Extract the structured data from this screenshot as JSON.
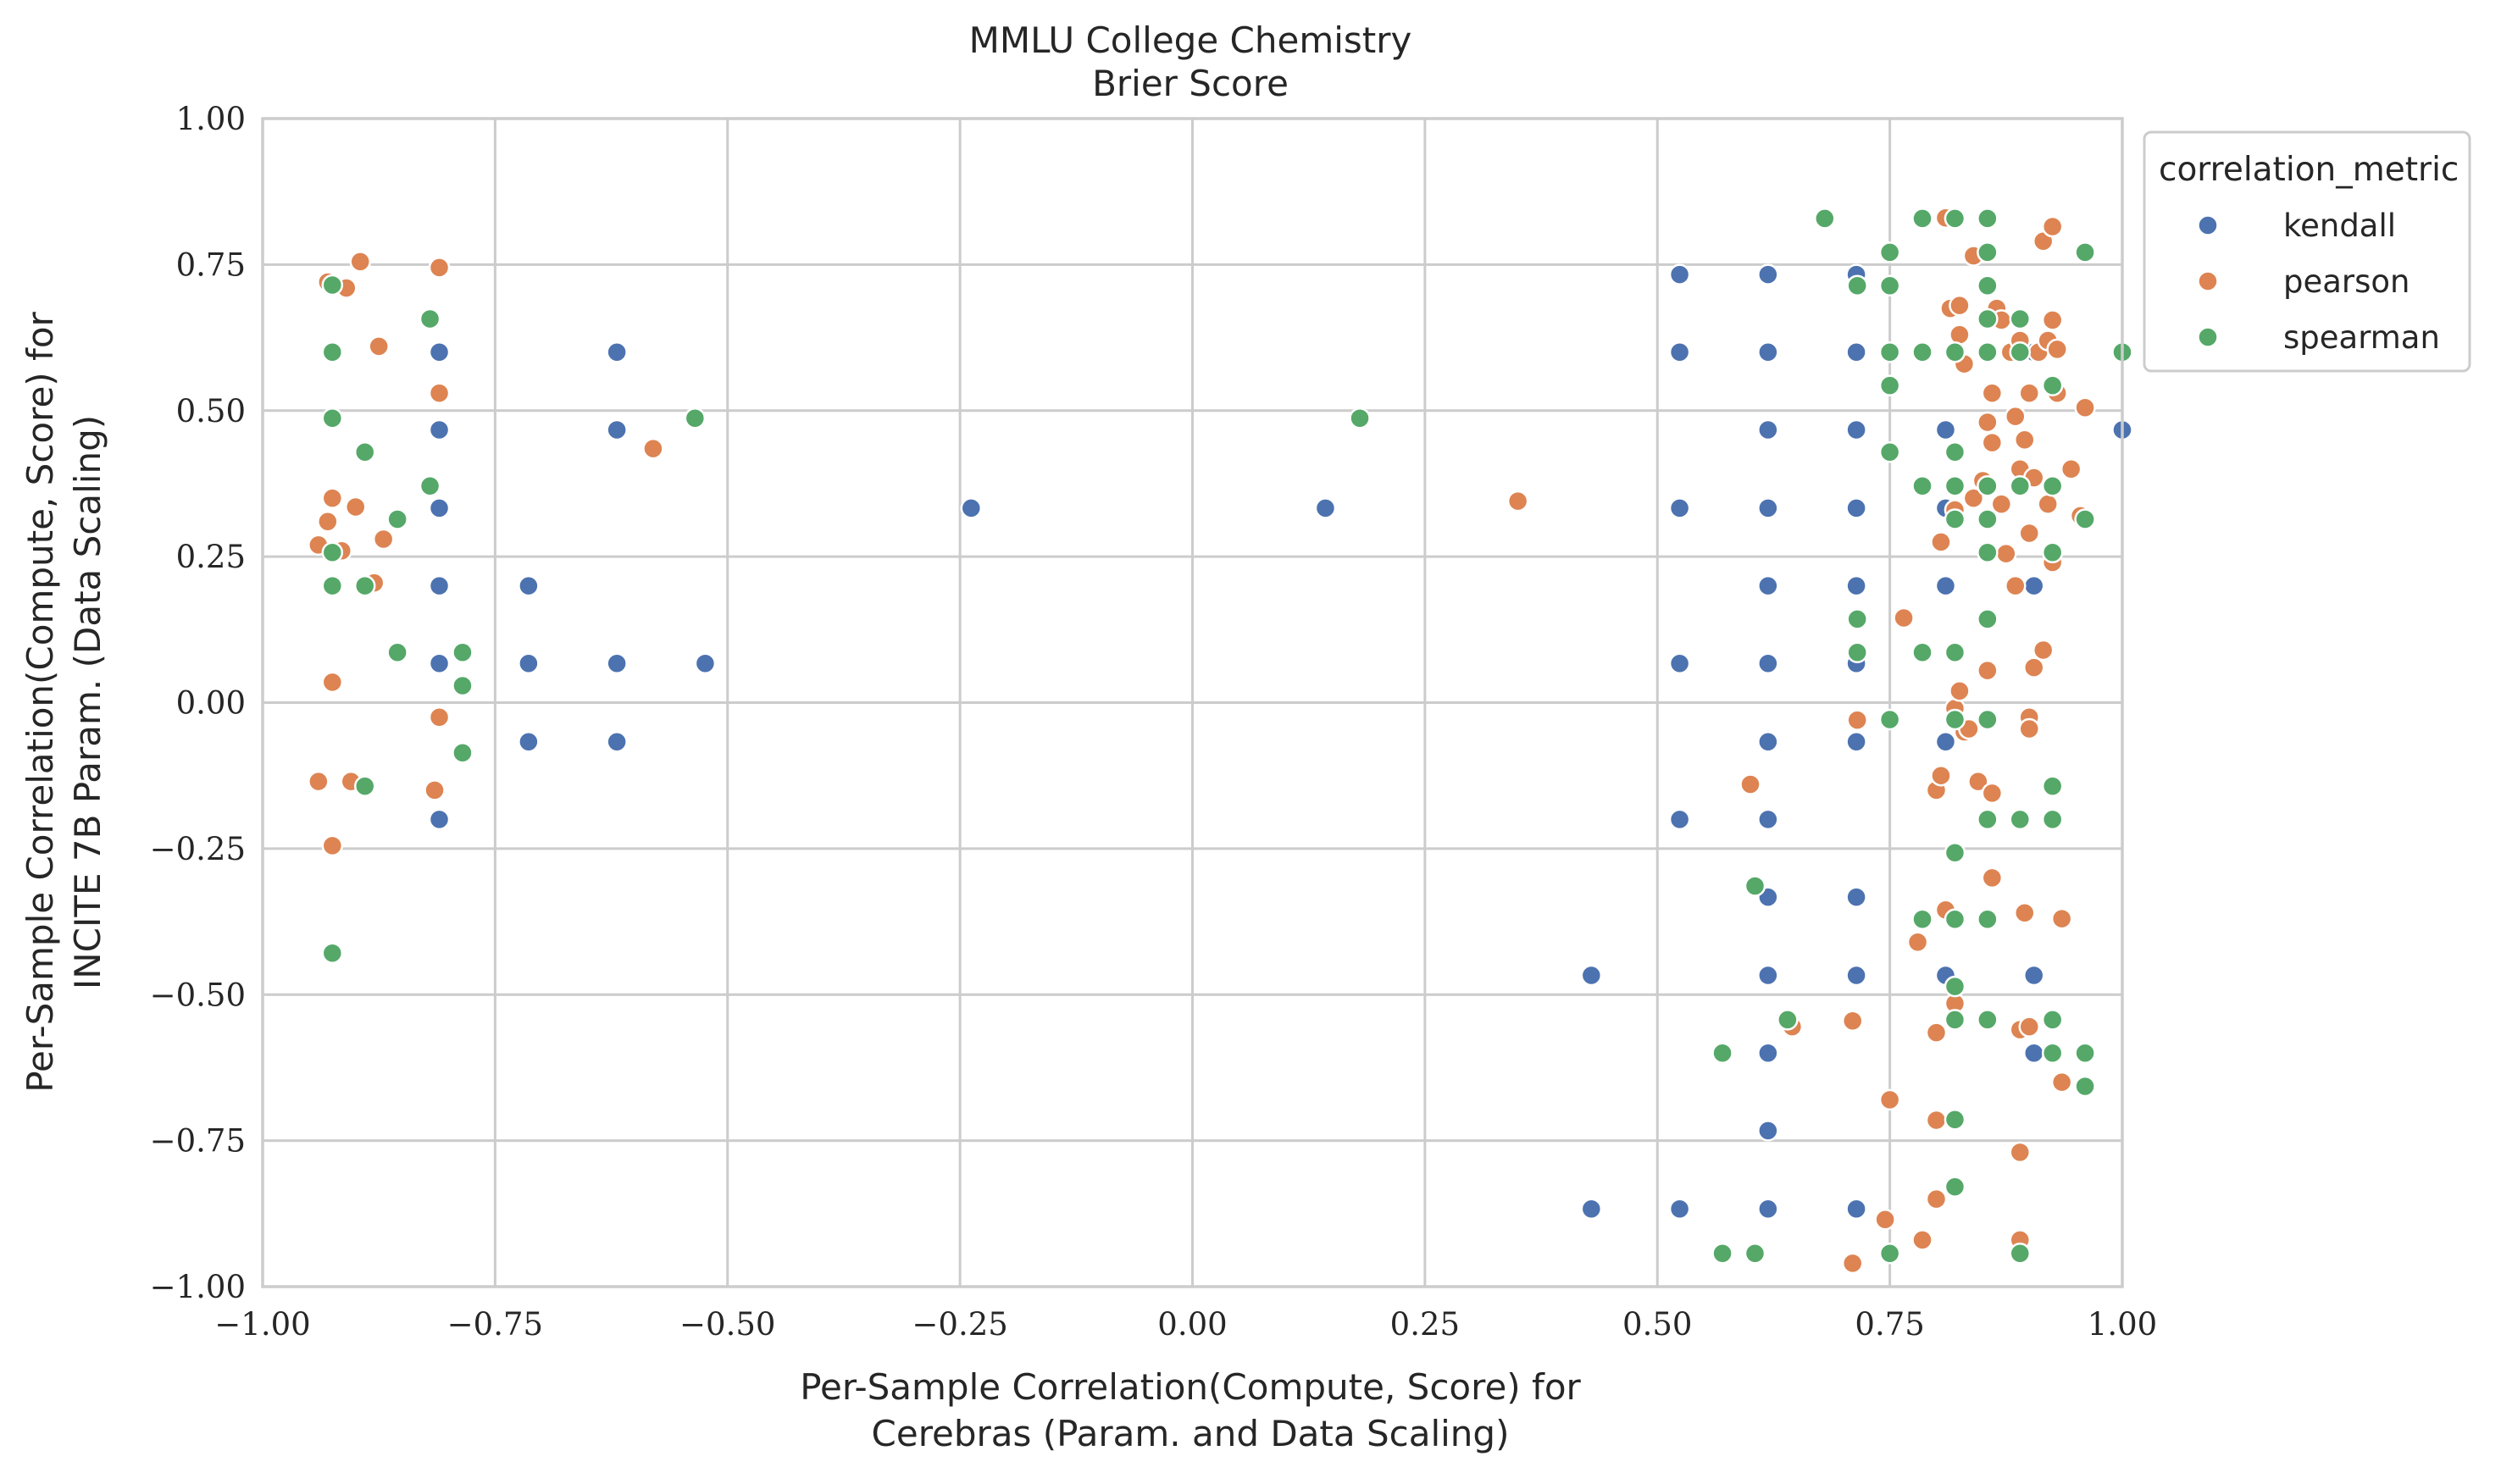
{
  "chart_data": {
    "type": "scatter",
    "title": "MMLU College Chemistry",
    "subtitle": "Brier Score",
    "xlabel_line1": "Per-Sample Correlation(Compute, Score) for",
    "xlabel_line2": "Cerebras (Param. and Data Scaling)",
    "ylabel_line1": "Per-Sample Correlation(Compute, Score) for",
    "ylabel_line2": "INCITE 7B Param. (Data Scaling)",
    "xlim": [
      -1.0,
      1.0
    ],
    "ylim": [
      -1.0,
      1.0
    ],
    "xticks": [
      -1.0,
      -0.75,
      -0.5,
      -0.25,
      0.0,
      0.25,
      0.5,
      0.75,
      1.0
    ],
    "yticks": [
      -1.0,
      -0.75,
      -0.5,
      -0.25,
      0.0,
      0.25,
      0.5,
      0.75,
      1.0
    ],
    "xtick_labels": [
      "−1.00",
      "−0.75",
      "−0.50",
      "−0.25",
      "0.00",
      "0.25",
      "0.50",
      "0.75",
      "1.00"
    ],
    "ytick_labels": [
      "−1.00",
      "−0.75",
      "−0.50",
      "−0.25",
      "0.00",
      "0.25",
      "0.50",
      "0.75",
      "1.00"
    ],
    "grid": true,
    "legend": {
      "title": "correlation_metric",
      "placement": "outside-top-right"
    },
    "series": [
      {
        "name": "kendall",
        "color": "#4c72b0",
        "points": [
          [
            -0.81,
            0.6
          ],
          [
            -0.81,
            0.467
          ],
          [
            -0.81,
            0.333
          ],
          [
            -0.81,
            0.2
          ],
          [
            -0.81,
            0.067
          ],
          [
            -0.81,
            -0.2
          ],
          [
            -0.714,
            0.2
          ],
          [
            -0.714,
            0.067
          ],
          [
            -0.714,
            -0.067
          ],
          [
            -0.619,
            0.6
          ],
          [
            -0.619,
            0.467
          ],
          [
            -0.619,
            0.067
          ],
          [
            -0.619,
            -0.067
          ],
          [
            -0.524,
            0.067
          ],
          [
            -0.238,
            0.333
          ],
          [
            0.143,
            0.333
          ],
          [
            0.429,
            -0.467
          ],
          [
            0.429,
            -0.867
          ],
          [
            0.524,
            0.733
          ],
          [
            0.524,
            0.6
          ],
          [
            0.524,
            0.333
          ],
          [
            0.524,
            0.067
          ],
          [
            0.524,
            -0.2
          ],
          [
            0.524,
            -0.867
          ],
          [
            0.619,
            0.733
          ],
          [
            0.619,
            0.6
          ],
          [
            0.619,
            0.467
          ],
          [
            0.619,
            0.333
          ],
          [
            0.619,
            0.2
          ],
          [
            0.619,
            0.067
          ],
          [
            0.619,
            -0.067
          ],
          [
            0.619,
            -0.2
          ],
          [
            0.619,
            -0.333
          ],
          [
            0.619,
            -0.467
          ],
          [
            0.619,
            -0.6
          ],
          [
            0.619,
            -0.733
          ],
          [
            0.619,
            -0.867
          ],
          [
            0.714,
            0.733
          ],
          [
            0.714,
            0.6
          ],
          [
            0.714,
            0.467
          ],
          [
            0.714,
            0.333
          ],
          [
            0.714,
            0.2
          ],
          [
            0.714,
            0.067
          ],
          [
            0.714,
            -0.067
          ],
          [
            0.714,
            -0.333
          ],
          [
            0.714,
            -0.467
          ],
          [
            0.714,
            -0.867
          ],
          [
            0.81,
            0.467
          ],
          [
            0.81,
            0.333
          ],
          [
            0.81,
            0.2
          ],
          [
            0.81,
            -0.067
          ],
          [
            0.81,
            -0.467
          ],
          [
            0.905,
            0.6
          ],
          [
            0.905,
            0.2
          ],
          [
            0.905,
            -0.467
          ],
          [
            0.905,
            -0.6
          ],
          [
            1.0,
            0.467
          ]
        ]
      },
      {
        "name": "pearson",
        "color": "#dd8452",
        "points": [
          [
            -0.94,
            0.27
          ],
          [
            -0.93,
            0.31
          ],
          [
            -0.925,
            0.35
          ],
          [
            -0.915,
            0.26
          ],
          [
            -0.91,
            0.71
          ],
          [
            -0.93,
            0.72
          ],
          [
            -0.895,
            0.755
          ],
          [
            -0.9,
            0.335
          ],
          [
            -0.88,
            0.205
          ],
          [
            -0.875,
            0.61
          ],
          [
            -0.87,
            0.28
          ],
          [
            -0.925,
            0.035
          ],
          [
            -0.905,
            -0.135
          ],
          [
            -0.94,
            -0.135
          ],
          [
            -0.925,
            -0.245
          ],
          [
            -0.81,
            0.745
          ],
          [
            -0.81,
            0.53
          ],
          [
            -0.81,
            -0.025
          ],
          [
            -0.815,
            -0.15
          ],
          [
            -0.58,
            0.435
          ],
          [
            0.35,
            0.345
          ],
          [
            0.6,
            -0.14
          ],
          [
            0.645,
            -0.555
          ],
          [
            0.71,
            -0.545
          ],
          [
            0.715,
            -0.03
          ],
          [
            0.71,
            -0.96
          ],
          [
            0.745,
            -0.885
          ],
          [
            0.75,
            -0.68
          ],
          [
            0.765,
            0.145
          ],
          [
            0.78,
            -0.41
          ],
          [
            0.785,
            -0.92
          ],
          [
            0.8,
            -0.85
          ],
          [
            0.8,
            -0.565
          ],
          [
            0.8,
            -0.715
          ],
          [
            0.8,
            -0.15
          ],
          [
            0.805,
            -0.125
          ],
          [
            0.805,
            0.275
          ],
          [
            0.81,
            -0.355
          ],
          [
            0.81,
            0.83
          ],
          [
            0.815,
            0.675
          ],
          [
            0.82,
            -0.01
          ],
          [
            0.82,
            0.33
          ],
          [
            0.82,
            -0.515
          ],
          [
            0.825,
            0.63
          ],
          [
            0.825,
            0.02
          ],
          [
            0.825,
            0.68
          ],
          [
            0.83,
            -0.05
          ],
          [
            0.83,
            0.58
          ],
          [
            0.835,
            -0.045
          ],
          [
            0.84,
            0.35
          ],
          [
            0.84,
            0.765
          ],
          [
            0.845,
            -0.135
          ],
          [
            0.85,
            0.38
          ],
          [
            0.855,
            0.48
          ],
          [
            0.855,
            0.055
          ],
          [
            0.86,
            -0.155
          ],
          [
            0.86,
            0.53
          ],
          [
            0.86,
            -0.3
          ],
          [
            0.86,
            0.445
          ],
          [
            0.865,
            0.675
          ],
          [
            0.87,
            0.655
          ],
          [
            0.87,
            0.34
          ],
          [
            0.875,
            0.255
          ],
          [
            0.88,
            0.6
          ],
          [
            0.885,
            0.49
          ],
          [
            0.885,
            0.2
          ],
          [
            0.89,
            0.4
          ],
          [
            0.89,
            0.62
          ],
          [
            0.89,
            -0.56
          ],
          [
            0.89,
            -0.77
          ],
          [
            0.89,
            -0.92
          ],
          [
            0.895,
            -0.36
          ],
          [
            0.895,
            0.45
          ],
          [
            0.9,
            -0.025
          ],
          [
            0.9,
            -0.045
          ],
          [
            0.9,
            0.29
          ],
          [
            0.9,
            0.53
          ],
          [
            0.9,
            -0.555
          ],
          [
            0.905,
            0.06
          ],
          [
            0.905,
            0.385
          ],
          [
            0.91,
            0.6
          ],
          [
            0.915,
            0.79
          ],
          [
            0.915,
            0.09
          ],
          [
            0.92,
            0.62
          ],
          [
            0.92,
            0.34
          ],
          [
            0.925,
            0.815
          ],
          [
            0.925,
            0.655
          ],
          [
            0.925,
            0.24
          ],
          [
            0.93,
            0.605
          ],
          [
            0.93,
            0.53
          ],
          [
            0.935,
            -0.37
          ],
          [
            0.935,
            -0.65
          ],
          [
            0.945,
            0.4
          ],
          [
            0.955,
            0.32
          ],
          [
            0.96,
            0.505
          ],
          [
            0.96,
            -0.655
          ]
        ]
      },
      {
        "name": "spearman",
        "color": "#55a868",
        "points": [
          [
            -0.925,
            0.715
          ],
          [
            -0.925,
            0.6
          ],
          [
            -0.925,
            0.487
          ],
          [
            -0.925,
            0.257
          ],
          [
            -0.925,
            0.2
          ],
          [
            -0.925,
            -0.429
          ],
          [
            -0.89,
            0.429
          ],
          [
            -0.89,
            0.2
          ],
          [
            -0.89,
            -0.143
          ],
          [
            -0.855,
            0.314
          ],
          [
            -0.855,
            0.086
          ],
          [
            -0.82,
            0.657
          ],
          [
            -0.82,
            0.371
          ],
          [
            -0.785,
            0.086
          ],
          [
            -0.785,
            0.029
          ],
          [
            -0.785,
            -0.086
          ],
          [
            -0.535,
            0.487
          ],
          [
            0.18,
            0.487
          ],
          [
            0.57,
            -0.6
          ],
          [
            0.57,
            -0.943
          ],
          [
            0.605,
            -0.314
          ],
          [
            0.605,
            -0.943
          ],
          [
            0.64,
            -0.543
          ],
          [
            0.68,
            0.829
          ],
          [
            0.715,
            0.714
          ],
          [
            0.715,
            0.143
          ],
          [
            0.715,
            0.086
          ],
          [
            0.75,
            0.771
          ],
          [
            0.75,
            0.714
          ],
          [
            0.75,
            0.6
          ],
          [
            0.75,
            0.543
          ],
          [
            0.75,
            0.429
          ],
          [
            0.75,
            -0.029
          ],
          [
            0.75,
            -0.943
          ],
          [
            0.785,
            0.829
          ],
          [
            0.785,
            0.6
          ],
          [
            0.785,
            0.371
          ],
          [
            0.785,
            0.086
          ],
          [
            0.785,
            -0.371
          ],
          [
            0.82,
            0.829
          ],
          [
            0.82,
            0.6
          ],
          [
            0.82,
            0.429
          ],
          [
            0.82,
            0.371
          ],
          [
            0.82,
            0.314
          ],
          [
            0.82,
            0.086
          ],
          [
            0.82,
            -0.029
          ],
          [
            0.82,
            -0.257
          ],
          [
            0.82,
            -0.371
          ],
          [
            0.82,
            -0.486
          ],
          [
            0.82,
            -0.543
          ],
          [
            0.82,
            -0.714
          ],
          [
            0.82,
            -0.829
          ],
          [
            0.855,
            0.829
          ],
          [
            0.855,
            0.771
          ],
          [
            0.855,
            0.714
          ],
          [
            0.855,
            0.657
          ],
          [
            0.855,
            0.6
          ],
          [
            0.855,
            0.371
          ],
          [
            0.855,
            0.314
          ],
          [
            0.855,
            0.257
          ],
          [
            0.855,
            0.143
          ],
          [
            0.855,
            -0.029
          ],
          [
            0.855,
            -0.2
          ],
          [
            0.855,
            -0.371
          ],
          [
            0.855,
            -0.543
          ],
          [
            0.89,
            0.657
          ],
          [
            0.89,
            0.6
          ],
          [
            0.89,
            0.371
          ],
          [
            0.89,
            -0.2
          ],
          [
            0.89,
            -0.943
          ],
          [
            0.925,
            0.543
          ],
          [
            0.925,
            0.371
          ],
          [
            0.925,
            0.257
          ],
          [
            0.925,
            -0.143
          ],
          [
            0.925,
            -0.2
          ],
          [
            0.925,
            -0.543
          ],
          [
            0.925,
            -0.6
          ],
          [
            0.96,
            0.771
          ],
          [
            0.96,
            0.314
          ],
          [
            0.96,
            -0.6
          ],
          [
            0.96,
            -0.657
          ],
          [
            1.0,
            0.6
          ]
        ]
      }
    ]
  }
}
